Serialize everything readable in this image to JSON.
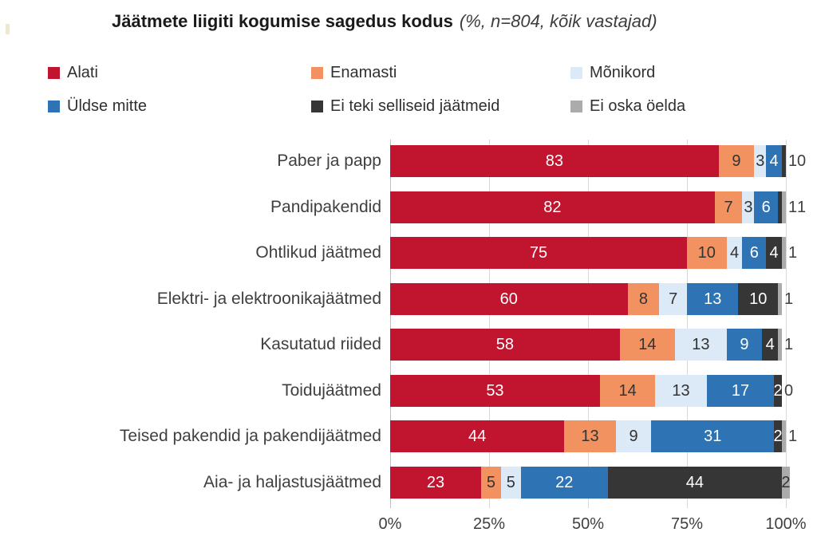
{
  "title": {
    "main": "Jäätmete liigiti kogumise sagedus kodus",
    "note": "(%, n=804, kõik vastajad)"
  },
  "legend": [
    {
      "label": "Alati",
      "color": "#C1142E"
    },
    {
      "label": "Enamasti",
      "color": "#F29261"
    },
    {
      "label": "Mõnikord",
      "color": "#DCE9F6"
    },
    {
      "label": "Üldse mitte",
      "color": "#2E74B5"
    },
    {
      "label": "Ei teki selliseid jäätmeid",
      "color": "#363636"
    },
    {
      "label": "Ei oska öelda",
      "color": "#ABABAB"
    }
  ],
  "chart_data": {
    "type": "bar",
    "orientation": "horizontal",
    "stacked": true,
    "title": "Jäätmete liigiti kogumise sagedus kodus (%, n=804, kõik vastajad)",
    "unit": "%",
    "n": 804,
    "legend_position": "top",
    "gridlines": true,
    "categories": [
      "Paber ja papp",
      "Pandipakendid",
      "Ohtlikud jäätmed",
      "Elektri- ja elektroonikajäätmed",
      "Kasutatud riided",
      "Toidujäätmed",
      "Teised pakendid ja pakendijäätmed",
      "Aia- ja haljastusjäätmed"
    ],
    "series": [
      {
        "name": "Alati",
        "color": "#C1142E",
        "values": [
          83,
          82,
          75,
          60,
          58,
          53,
          44,
          23
        ]
      },
      {
        "name": "Enamasti",
        "color": "#F29261",
        "values": [
          9,
          7,
          10,
          8,
          14,
          14,
          13,
          5
        ]
      },
      {
        "name": "Mõnikord",
        "color": "#DCE9F6",
        "values": [
          3,
          3,
          4,
          7,
          13,
          13,
          9,
          5
        ]
      },
      {
        "name": "Üldse mitte",
        "color": "#2E74B5",
        "values": [
          4,
          6,
          6,
          13,
          9,
          17,
          31,
          22
        ]
      },
      {
        "name": "Ei teki selliseid jäätmeid",
        "color": "#363636",
        "values": [
          1,
          1,
          4,
          10,
          4,
          2,
          2,
          44
        ]
      },
      {
        "name": "Ei oska öelda",
        "color": "#ABABAB",
        "values": [
          0,
          1,
          1,
          1,
          1,
          0,
          1,
          2
        ]
      }
    ],
    "x_axis": {
      "min": 0,
      "max": 100,
      "ticks": [
        "0%",
        "25%",
        "50%",
        "75%",
        "100%"
      ]
    }
  }
}
